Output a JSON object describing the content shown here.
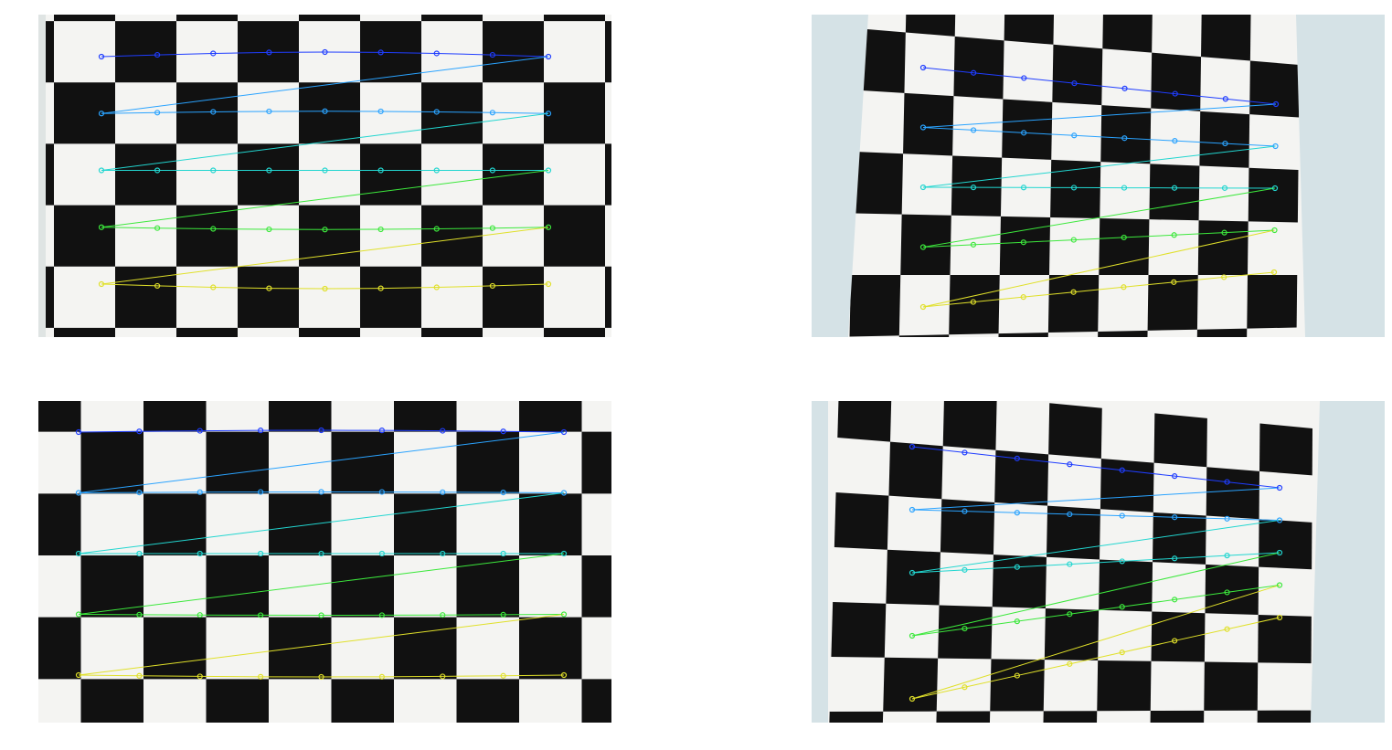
{
  "figure": {
    "panels": [
      {
        "id": "calib-1",
        "background": "#f1f1ee",
        "wall": "#dfe4e3",
        "chessboard_cols": 10,
        "corner_grid": [
          9,
          5
        ]
      },
      {
        "id": "calib-2",
        "background": "#ffffff",
        "wall": "#d5e2e6",
        "chessboard_cols": 9,
        "corner_grid": [
          8,
          5
        ]
      },
      {
        "id": "calib-3",
        "background": "#f4f4f2",
        "wall": "#f4f4f2",
        "chessboard_cols": 10,
        "corner_grid": [
          9,
          5
        ]
      },
      {
        "id": "calib-4",
        "background": "#ffffff",
        "wall": "#d5e2e6",
        "chessboard_cols": 9,
        "corner_grid": [
          8,
          5
        ]
      }
    ],
    "row_colors": [
      "#1f3dff",
      "#2aa3ff",
      "#22d6d0",
      "#3ce83c",
      "#e0e02a"
    ],
    "square_color": "#111111",
    "paper_color": "#f4f4f2"
  }
}
